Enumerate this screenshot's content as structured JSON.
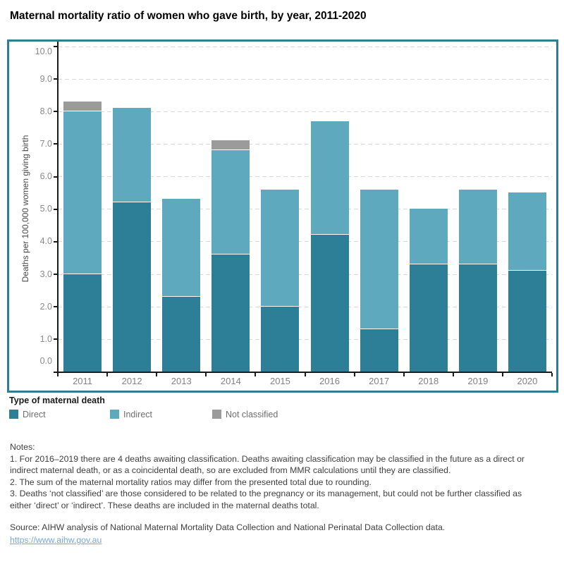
{
  "title": "Maternal mortality ratio of women who gave birth, by year, 2011-2020",
  "legend": {
    "title": "Type of maternal death"
  },
  "chart_data": {
    "type": "bar",
    "stacked": true,
    "categories": [
      "2011",
      "2012",
      "2013",
      "2014",
      "2015",
      "2016",
      "2017",
      "2018",
      "2019",
      "2020"
    ],
    "series": [
      {
        "name": "Direct",
        "color": "#2d7f97",
        "values": [
          3.0,
          5.2,
          2.3,
          3.6,
          2.0,
          4.2,
          1.3,
          3.3,
          3.3,
          3.1
        ]
      },
      {
        "name": "Indirect",
        "color": "#5ea9bd",
        "values": [
          5.0,
          2.9,
          3.0,
          3.2,
          3.6,
          3.5,
          4.3,
          1.7,
          2.3,
          2.4
        ]
      },
      {
        "name": "Not classified",
        "color": "#9b9b9b",
        "values": [
          0.3,
          0.0,
          0.0,
          0.3,
          0.0,
          0.0,
          0.0,
          0.0,
          0.0,
          0.0
        ]
      }
    ],
    "totals": [
      8.3,
      8.1,
      5.3,
      7.1,
      5.6,
      7.7,
      5.6,
      5.0,
      5.6,
      5.5
    ],
    "title": "Maternal mortality ratio of women who gave birth, by year, 2011-2020",
    "xlabel": "",
    "ylabel": "Deaths per 100,000 women giving birth",
    "ylim": [
      0,
      10.15
    ],
    "y_ticks": [
      "0.0",
      "1.0",
      "2.0",
      "3.0",
      "4.0",
      "5.0",
      "6.0",
      "7.0",
      "8.0",
      "9.0",
      "10.0"
    ],
    "grid": "horizontal-dashed",
    "legend_position": "below"
  },
  "notes_lines": [
    "Notes:",
    "1. For 2016–2019 there are 4 deaths awaiting classification. Deaths awaiting classification may be classified in the future as a direct or",
    "indirect maternal death, or as a coincidental death, so are excluded from MMR calculations until they are classified.",
    "2. The sum of the maternal mortality ratios may differ from the presented total due to rounding.",
    "3. Deaths ‘not classified’ are those considered to be related to the pregnancy or its management, but could not be further classified as",
    "either ‘direct’ or ‘indirect’. These deaths are included in the maternal deaths total."
  ],
  "source": "Source: AIHW analysis of National Maternal Mortality Data Collection and National Perinatal Data Collection data.",
  "link": "https://www.aihw.gov.au",
  "colors": {
    "frame_border": "#2e7d92",
    "axis": "#1a1a1a",
    "gridline": "#d9d9d9",
    "tick_label": "#8a8a8a",
    "link": "#74a9d8"
  }
}
